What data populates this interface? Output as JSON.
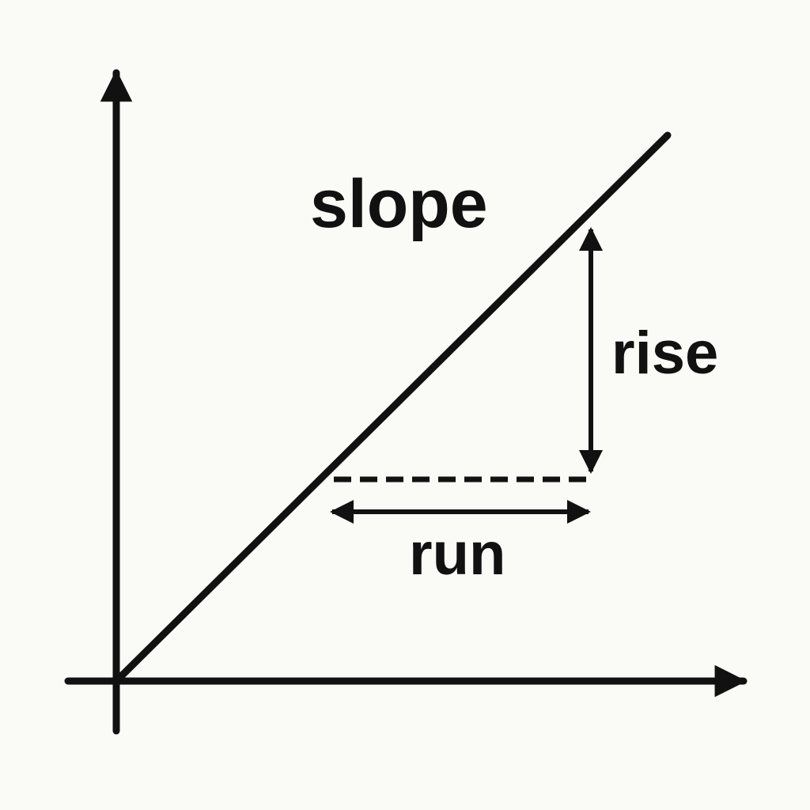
{
  "diagram": {
    "labels": {
      "slope": "slope",
      "rise": "rise",
      "run": "run"
    },
    "colors": {
      "background": "#fafaf7",
      "ink": "#111111"
    }
  }
}
